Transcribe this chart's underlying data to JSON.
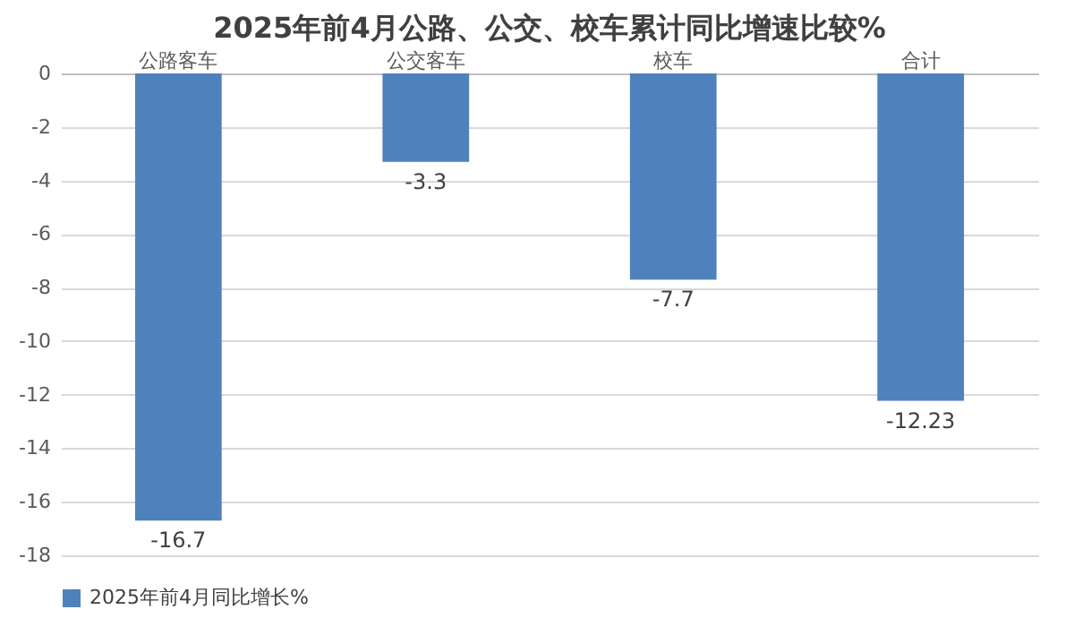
{
  "chart_data": {
    "type": "bar",
    "title": "2025年前4月公路、公交、校车累计同比增速比较%",
    "categories": [
      "公路客车",
      "公交客车",
      "校车",
      "合计"
    ],
    "series": [
      {
        "name": "2025年前4月同比增长%",
        "color": "#4f81bd",
        "values": [
          -16.7,
          -3.3,
          -7.7,
          -12.23
        ]
      }
    ],
    "ylim": [
      -18,
      0
    ],
    "yticks": [
      -18,
      -16,
      -14,
      -12,
      -10,
      -8,
      -6,
      -4,
      -2,
      0
    ],
    "grid": "y",
    "legend": "bottom",
    "data_labels": true
  }
}
